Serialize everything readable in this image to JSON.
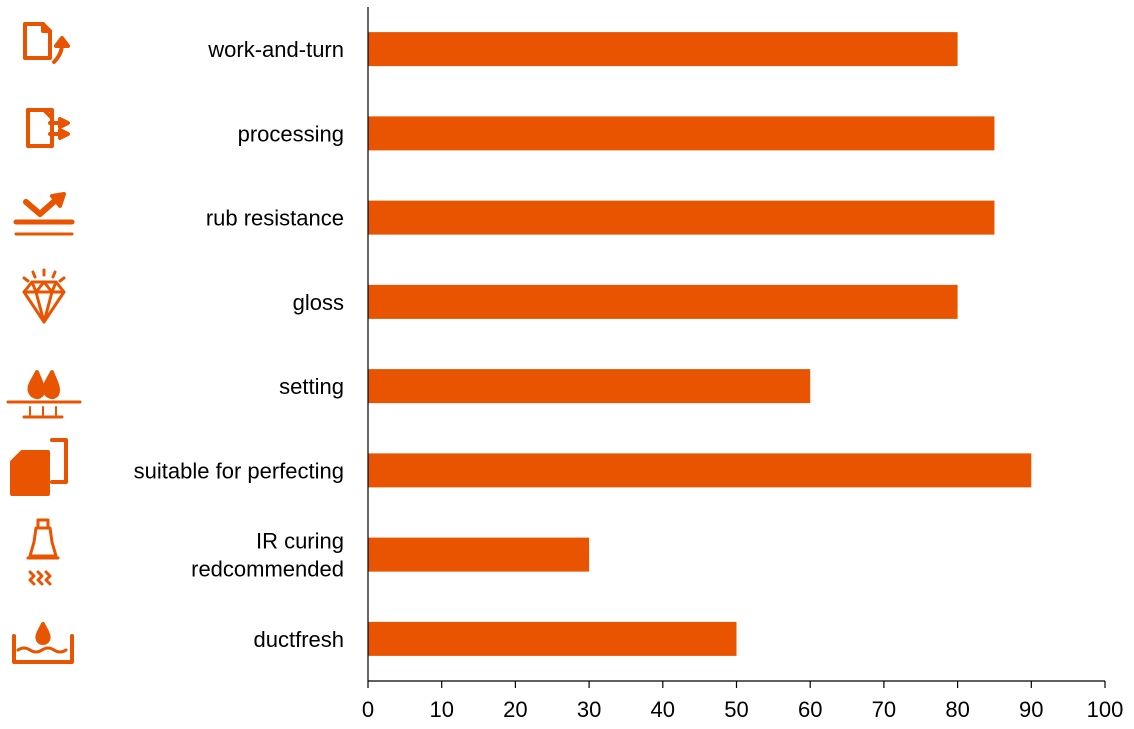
{
  "chart_data": {
    "type": "bar",
    "orientation": "horizontal",
    "title": "",
    "xlabel": "",
    "ylabel": "",
    "xlim": [
      0,
      100
    ],
    "xticks": [
      0,
      10,
      20,
      30,
      40,
      50,
      60,
      70,
      80,
      90,
      100
    ],
    "grid": false,
    "legend": "none",
    "bar_color": "#e85400",
    "icon_color": "#e85400",
    "categories": [
      {
        "label": [
          "work-and-turn"
        ],
        "value": 80,
        "icon": "work-and-turn-icon"
      },
      {
        "label": [
          "processing"
        ],
        "value": 85,
        "icon": "processing-icon"
      },
      {
        "label": [
          "rub resistance"
        ],
        "value": 85,
        "icon": "rub-resistance-icon"
      },
      {
        "label": [
          "gloss"
        ],
        "value": 80,
        "icon": "gloss-diamond-icon"
      },
      {
        "label": [
          "setting"
        ],
        "value": 60,
        "icon": "setting-drops-icon"
      },
      {
        "label": [
          "suitable for perfecting"
        ],
        "value": 90,
        "icon": "perfecting-icon"
      },
      {
        "label": [
          "IR curing",
          "redcommended"
        ],
        "value": 30,
        "icon": "ir-lamp-icon"
      },
      {
        "label": [
          "ductfresh"
        ],
        "value": 50,
        "icon": "ductfresh-icon"
      }
    ]
  }
}
